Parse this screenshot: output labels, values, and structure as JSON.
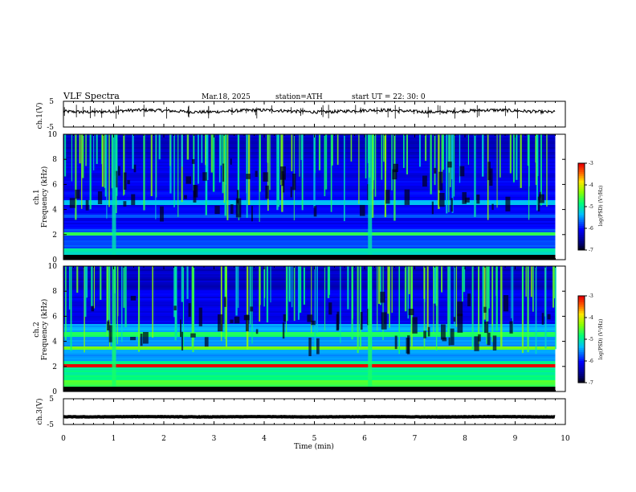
{
  "header": {
    "title": "VLF  Spectra",
    "date": "Mar.18, 2025",
    "station": "station=ATH",
    "start": "start  UT  =   22: 30: 0"
  },
  "chart_data": [
    {
      "type": "line",
      "name": "ch1-waveform",
      "ylabel": "ch.1(V)",
      "ylim": [
        -5,
        5
      ],
      "y_ticks": [
        "5",
        "-5"
      ],
      "xlim": [
        0,
        10
      ],
      "approx_level": 1.2
    },
    {
      "type": "heatmap",
      "name": "ch1-spectrogram",
      "ylabel_top": "ch.1",
      "ylabel": "Frequency (kHz)",
      "ylim": [
        0,
        10
      ],
      "y_ticks": [
        "10",
        "8",
        "6",
        "4",
        "2",
        "0"
      ],
      "xlim": [
        0,
        9.8
      ],
      "colorbar": {
        "label": "log(PSD) (V²/Hz)",
        "ticks": [
          "-3",
          "-4",
          "-5",
          "-6",
          "-7"
        ],
        "range": [
          -7,
          -3
        ]
      }
    },
    {
      "type": "heatmap",
      "name": "ch2-spectrogram",
      "ylabel_top": "ch.2",
      "ylabel": "Frequency (kHz)",
      "ylim": [
        0,
        10
      ],
      "y_ticks": [
        "10",
        "8",
        "6",
        "4",
        "2",
        "0"
      ],
      "xlim": [
        0,
        9.8
      ],
      "colorbar": {
        "label": "log(PSD) (V²/Hz)",
        "ticks": [
          "-3",
          "-4",
          "-5",
          "-6",
          "-7"
        ],
        "range": [
          -7,
          -3
        ]
      }
    },
    {
      "type": "line",
      "name": "ch3-waveform",
      "ylabel": "ch.3(V)",
      "ylim": [
        -5,
        5
      ],
      "y_ticks": [
        "5",
        "-5"
      ],
      "xlim": [
        0,
        10
      ],
      "approx_level": -2
    }
  ],
  "x_axis": {
    "label": "Time  (min)",
    "ticks": [
      "0",
      "1",
      "2",
      "3",
      "4",
      "5",
      "6",
      "7",
      "8",
      "9",
      "10"
    ]
  }
}
